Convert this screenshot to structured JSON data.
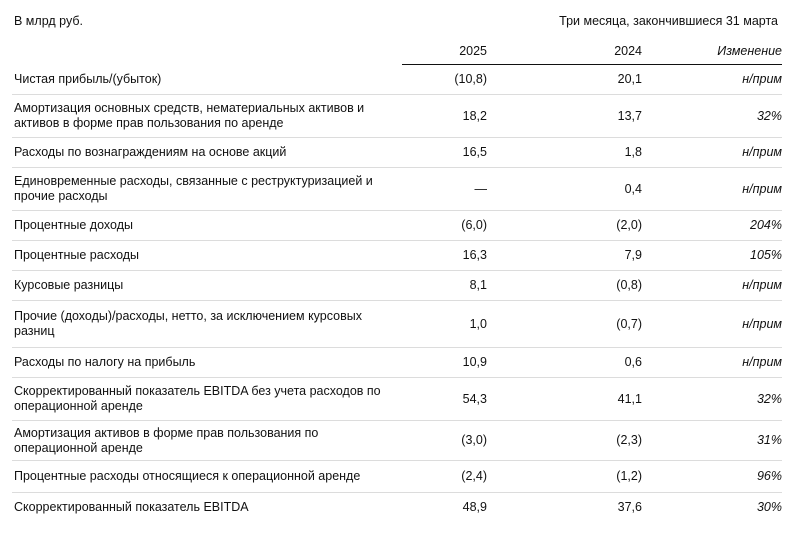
{
  "header": {
    "unit": "В млрд руб.",
    "period": "Три месяца, закончившиеся 31 марта",
    "col_2025": "2025",
    "col_2024": "2024",
    "col_change": "Изменение"
  },
  "rows": [
    {
      "label": "Чистая прибыль/(убыток)",
      "v2025": "(10,8)",
      "v2024": "20,1",
      "change": "н/прим"
    },
    {
      "label": "Амортизация основных средств, нематериальных активов и активов в форме прав пользования по аренде",
      "v2025": "18,2",
      "v2024": "13,7",
      "change": "32%"
    },
    {
      "label": "Расходы по вознаграждениям на основе акций",
      "v2025": "16,5",
      "v2024": "1,8",
      "change": "н/прим"
    },
    {
      "label": "Единовременные расходы, связанные с реструктуризацией и прочие расходы",
      "v2025": "—",
      "v2024": "0,4",
      "change": "н/прим"
    },
    {
      "label": "Процентные доходы",
      "v2025": "(6,0)",
      "v2024": "(2,0)",
      "change": "204%"
    },
    {
      "label": "Процентные расходы",
      "v2025": "16,3",
      "v2024": "7,9",
      "change": "105%"
    },
    {
      "label": "Курсовые разницы",
      "v2025": "8,1",
      "v2024": "(0,8)",
      "change": "н/прим"
    },
    {
      "label": "Прочие (доходы)/расходы, нетто, за исключением курсовых разниц",
      "v2025": "1,0",
      "v2024": "(0,7)",
      "change": "н/прим"
    },
    {
      "label": "Расходы по налогу на прибыль",
      "v2025": "10,9",
      "v2024": "0,6",
      "change": "н/прим"
    },
    {
      "label": "Скорректированный показатель EBITDA без учета расходов по операционной аренде",
      "v2025": "54,3",
      "v2024": "41,1",
      "change": "32%"
    },
    {
      "label": "Амортизация активов в форме прав пользования по операционной аренде",
      "v2025": "(3,0)",
      "v2024": "(2,3)",
      "change": "31%"
    },
    {
      "label": "Процентные расходы относящиеся к операционной аренде",
      "v2025": "(2,4)",
      "v2024": "(1,2)",
      "change": "96%"
    },
    {
      "label": "Скорректированный показатель EBITDA",
      "v2025": "48,9",
      "v2024": "37,6",
      "change": "30%"
    }
  ]
}
